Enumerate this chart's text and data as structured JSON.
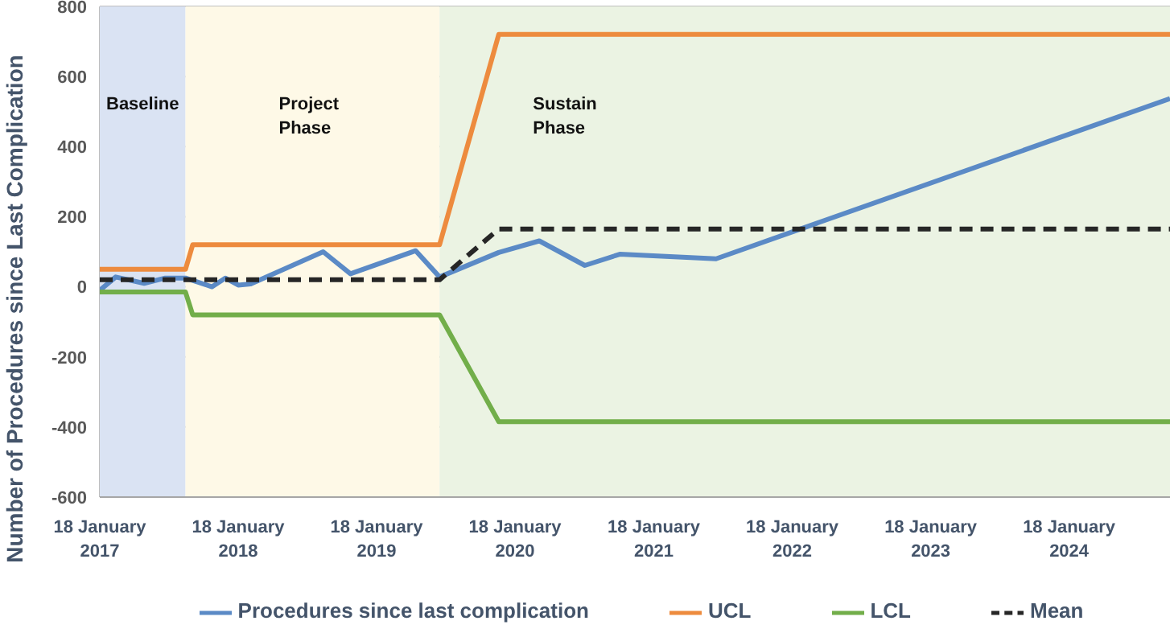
{
  "chart_data": {
    "type": "line",
    "ylabel": "Number of Procedures since Last Complication",
    "xlim": [
      "2017-01-18",
      "2024-10-10"
    ],
    "xticks": [
      {
        "value": "2017-01-18",
        "label": "18 January 2017"
      },
      {
        "value": "2018-01-18",
        "label": "18 January 2018"
      },
      {
        "value": "2019-01-18",
        "label": "18 January 2019"
      },
      {
        "value": "2020-01-18",
        "label": "18 January 2020"
      },
      {
        "value": "2021-01-18",
        "label": "18 January 2021"
      },
      {
        "value": "2022-01-18",
        "label": "18 January 2022"
      },
      {
        "value": "2023-01-18",
        "label": "18 January 2023"
      },
      {
        "value": "2024-01-18",
        "label": "18 January 2024"
      }
    ],
    "ylim": [
      -600,
      800
    ],
    "yticks": [
      -600,
      -400,
      -200,
      0,
      200,
      400,
      600,
      800
    ],
    "grid": true,
    "legend": "bottom",
    "marker": "none",
    "bands": [
      {
        "axis": "x",
        "from": "2017-01-18",
        "to": "2017-09-01",
        "label": "Baseline",
        "color": "#dae3f3"
      },
      {
        "axis": "x",
        "from": "2017-09-01",
        "to": "2019-07-03",
        "label": "Project Phase",
        "color": "#fef9e7"
      },
      {
        "axis": "x",
        "from": "2019-07-03",
        "to": "2024-10-10",
        "label": "Sustain Phase",
        "color": "#ebf3e3"
      }
    ],
    "series": [
      {
        "name": "Procedures since last complication",
        "color": "#5b8ac6",
        "x": [
          "2017-01-18",
          "2017-03-01",
          "2017-05-15",
          "2017-07-10",
          "2017-09-01",
          "2017-11-10",
          "2017-12-15",
          "2018-01-18",
          "2018-02-20",
          "2018-08-30",
          "2018-11-10",
          "2019-05-01",
          "2019-07-03",
          "2019-12-06",
          "2020-03-22",
          "2020-07-20",
          "2020-10-20",
          "2021-07-01",
          "2024-10-10"
        ],
        "values": [
          -10,
          28,
          10,
          25,
          25,
          0,
          25,
          5,
          8,
          100,
          37,
          103,
          28,
          98,
          131,
          61,
          93,
          80,
          537
        ]
      },
      {
        "name": "UCL",
        "color": "#ed8b3e",
        "x": [
          "2017-01-18",
          "2017-09-01",
          "2017-09-20",
          "2019-07-03",
          "2019-12-06",
          "2024-10-10"
        ],
        "values": [
          50,
          50,
          120,
          120,
          720,
          720
        ]
      },
      {
        "name": "LCL",
        "color": "#72ae4a",
        "x": [
          "2017-01-18",
          "2017-09-01",
          "2017-09-20",
          "2019-07-03",
          "2019-12-06",
          "2024-10-10"
        ],
        "values": [
          -15,
          -15,
          -80,
          -80,
          -385,
          -385
        ]
      },
      {
        "name": "Mean",
        "color": "#262626",
        "line_style": "dashed",
        "x": [
          "2017-01-18",
          "2019-07-03",
          "2019-12-06",
          "2024-10-10"
        ],
        "values": [
          20,
          20,
          165,
          165
        ]
      }
    ]
  }
}
